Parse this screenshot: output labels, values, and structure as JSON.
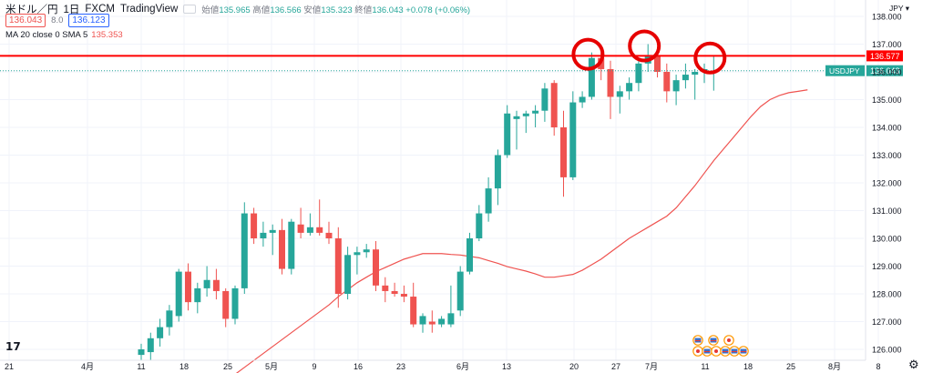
{
  "header": {
    "symbol": "米ドル／円",
    "interval": "1日",
    "source": "FXCM",
    "platform": "TradingView",
    "ohlc": {
      "open_label": "始値",
      "open": "135.965",
      "high_label": "高値",
      "high": "136.566",
      "low_label": "安値",
      "low": "135.323",
      "close_label": "終値",
      "close": "136.043",
      "change": "+0.078 (+0.06%)"
    },
    "sell_price": "136.043",
    "spread": "8.0",
    "buy_price": "136.123",
    "indicator_label": "MA 20 close 0 SMA 5",
    "indicator_value": "135.353"
  },
  "currency_label": "JPY",
  "colors": {
    "up": "#26a69a",
    "down": "#ef5350",
    "ma": "#ef5350",
    "resistance": "#ff0000",
    "circle": "#e60000"
  },
  "chart_data": {
    "type": "candlestick",
    "y_axis": {
      "range": [
        125.5,
        138.3
      ],
      "ticks": [
        "126.000",
        "127.000",
        "128.000",
        "129.000",
        "130.000",
        "131.000",
        "132.000",
        "133.000",
        "134.000",
        "135.000",
        "136.000",
        "137.000",
        "138.000"
      ]
    },
    "x_axis": {
      "ticks": [
        "21",
        "4月",
        "11",
        "18",
        "25",
        "5月",
        "9",
        "16",
        "23",
        "6月",
        "13",
        "20",
        "27",
        "7月",
        "11",
        "18",
        "25",
        "8月",
        "8"
      ]
    },
    "horizontal_line": {
      "value": 136.577,
      "label": "136.577"
    },
    "last_price": {
      "value": 136.043,
      "label": "136.043",
      "symbol": "USDJPY"
    },
    "candles": [
      {
        "o": 125.8,
        "h": 126.2,
        "l": 125.5,
        "c": 126.0
      },
      {
        "o": 125.9,
        "h": 126.6,
        "l": 125.6,
        "c": 126.4
      },
      {
        "o": 126.4,
        "h": 127.1,
        "l": 126.1,
        "c": 126.8
      },
      {
        "o": 126.8,
        "h": 127.6,
        "l": 126.5,
        "c": 127.4
      },
      {
        "o": 127.2,
        "h": 128.9,
        "l": 127.0,
        "c": 128.8
      },
      {
        "o": 128.8,
        "h": 129.1,
        "l": 127.4,
        "c": 127.7
      },
      {
        "o": 127.7,
        "h": 128.4,
        "l": 127.3,
        "c": 128.2
      },
      {
        "o": 128.2,
        "h": 129.0,
        "l": 127.9,
        "c": 128.5
      },
      {
        "o": 128.5,
        "h": 128.9,
        "l": 127.8,
        "c": 128.1
      },
      {
        "o": 128.1,
        "h": 128.2,
        "l": 126.8,
        "c": 127.1
      },
      {
        "o": 127.1,
        "h": 128.3,
        "l": 126.9,
        "c": 128.2
      },
      {
        "o": 128.2,
        "h": 131.3,
        "l": 128.0,
        "c": 130.9
      },
      {
        "o": 130.9,
        "h": 131.1,
        "l": 129.8,
        "c": 130.0
      },
      {
        "o": 130.0,
        "h": 130.6,
        "l": 129.7,
        "c": 130.2
      },
      {
        "o": 130.2,
        "h": 130.5,
        "l": 129.4,
        "c": 130.3
      },
      {
        "o": 130.3,
        "h": 130.7,
        "l": 128.7,
        "c": 128.9
      },
      {
        "o": 128.9,
        "h": 130.7,
        "l": 128.7,
        "c": 130.6
      },
      {
        "o": 130.5,
        "h": 131.1,
        "l": 130.0,
        "c": 130.2
      },
      {
        "o": 130.2,
        "h": 130.9,
        "l": 130.1,
        "c": 130.4
      },
      {
        "o": 130.4,
        "h": 131.4,
        "l": 130.1,
        "c": 130.2
      },
      {
        "o": 130.2,
        "h": 130.6,
        "l": 129.8,
        "c": 130.0
      },
      {
        "o": 130.0,
        "h": 130.4,
        "l": 127.5,
        "c": 128.0
      },
      {
        "o": 128.0,
        "h": 129.7,
        "l": 127.8,
        "c": 129.4
      },
      {
        "o": 129.4,
        "h": 129.7,
        "l": 128.7,
        "c": 129.5
      },
      {
        "o": 129.5,
        "h": 129.8,
        "l": 129.3,
        "c": 129.6
      },
      {
        "o": 129.6,
        "h": 129.9,
        "l": 128.1,
        "c": 128.3
      },
      {
        "o": 128.3,
        "h": 128.6,
        "l": 127.7,
        "c": 128.1
      },
      {
        "o": 128.1,
        "h": 128.4,
        "l": 127.9,
        "c": 128.0
      },
      {
        "o": 128.0,
        "h": 128.3,
        "l": 127.7,
        "c": 127.9
      },
      {
        "o": 127.9,
        "h": 128.4,
        "l": 126.8,
        "c": 126.9
      },
      {
        "o": 126.9,
        "h": 127.3,
        "l": 126.6,
        "c": 127.2
      },
      {
        "o": 127.0,
        "h": 127.4,
        "l": 126.6,
        "c": 126.9
      },
      {
        "o": 126.9,
        "h": 127.2,
        "l": 126.8,
        "c": 127.1
      },
      {
        "o": 126.9,
        "h": 128.3,
        "l": 126.8,
        "c": 127.3
      },
      {
        "o": 127.4,
        "h": 129.0,
        "l": 127.2,
        "c": 128.8
      },
      {
        "o": 128.8,
        "h": 130.2,
        "l": 128.7,
        "c": 130.0
      },
      {
        "o": 130.0,
        "h": 131.2,
        "l": 129.9,
        "c": 130.9
      },
      {
        "o": 130.9,
        "h": 132.2,
        "l": 130.6,
        "c": 131.8
      },
      {
        "o": 131.8,
        "h": 133.2,
        "l": 131.2,
        "c": 133.0
      },
      {
        "o": 133.0,
        "h": 134.8,
        "l": 132.9,
        "c": 134.5
      },
      {
        "o": 134.3,
        "h": 134.6,
        "l": 133.2,
        "c": 134.4
      },
      {
        "o": 134.4,
        "h": 134.6,
        "l": 133.8,
        "c": 134.5
      },
      {
        "o": 134.5,
        "h": 134.8,
        "l": 134.0,
        "c": 134.6
      },
      {
        "o": 134.6,
        "h": 135.6,
        "l": 134.2,
        "c": 135.4
      },
      {
        "o": 135.6,
        "h": 135.7,
        "l": 133.7,
        "c": 134.0
      },
      {
        "o": 134.0,
        "h": 134.6,
        "l": 131.5,
        "c": 132.2
      },
      {
        "o": 132.2,
        "h": 135.3,
        "l": 132.1,
        "c": 134.9
      },
      {
        "o": 134.9,
        "h": 135.3,
        "l": 134.7,
        "c": 135.1
      },
      {
        "o": 135.1,
        "h": 136.7,
        "l": 135.0,
        "c": 136.5
      },
      {
        "o": 136.5,
        "h": 136.7,
        "l": 135.7,
        "c": 136.1
      },
      {
        "o": 136.1,
        "h": 136.4,
        "l": 134.3,
        "c": 135.1
      },
      {
        "o": 135.1,
        "h": 135.5,
        "l": 134.5,
        "c": 135.3
      },
      {
        "o": 135.3,
        "h": 135.8,
        "l": 135.0,
        "c": 135.6
      },
      {
        "o": 135.6,
        "h": 136.5,
        "l": 135.3,
        "c": 136.3
      },
      {
        "o": 136.3,
        "h": 137.0,
        "l": 136.0,
        "c": 136.6
      },
      {
        "o": 136.6,
        "h": 136.9,
        "l": 135.8,
        "c": 136.0
      },
      {
        "o": 136.0,
        "h": 136.3,
        "l": 134.9,
        "c": 135.3
      },
      {
        "o": 135.3,
        "h": 135.9,
        "l": 134.8,
        "c": 135.7
      },
      {
        "o": 135.7,
        "h": 136.3,
        "l": 135.4,
        "c": 135.9
      },
      {
        "o": 135.9,
        "h": 136.1,
        "l": 135.0,
        "c": 136.0
      },
      {
        "o": 136.0,
        "h": 136.3,
        "l": 135.6,
        "c": 136.1
      },
      {
        "o": 135.965,
        "h": 136.566,
        "l": 135.323,
        "c": 136.043
      }
    ],
    "ma20": [
      125.1,
      125.35,
      125.6,
      125.85,
      126.1,
      126.35,
      126.6,
      126.85,
      127.1,
      127.35,
      127.6,
      127.9,
      128.15,
      128.4,
      128.6,
      128.8,
      128.95,
      129.1,
      129.25,
      129.35,
      129.45,
      129.45,
      129.45,
      129.42,
      129.4,
      129.35,
      129.3,
      129.2,
      129.1,
      128.98,
      128.9,
      128.82,
      128.72,
      128.6,
      128.6,
      128.65,
      128.7,
      128.85,
      129.05,
      129.25,
      129.5,
      129.75,
      130.0,
      130.2,
      130.4,
      130.6,
      130.8,
      131.1,
      131.5,
      131.9,
      132.35,
      132.8,
      133.2,
      133.6,
      134.0,
      134.4,
      134.75,
      135.0,
      135.15,
      135.25,
      135.3,
      135.353
    ],
    "circled_candles": [
      48,
      54,
      61
    ],
    "event_markers": [
      {
        "label": "US",
        "row": 1,
        "slot": 0
      },
      {
        "label": "US",
        "row": 1,
        "slot": 1
      },
      {
        "label": "JP",
        "row": 1,
        "slot": 2
      },
      {
        "label": "JP",
        "row": 2,
        "slot": 0
      },
      {
        "label": "US",
        "row": 2,
        "slot": 1
      },
      {
        "label": "JP",
        "row": 2,
        "slot": 2
      },
      {
        "label": "US",
        "row": 2,
        "slot": 3
      },
      {
        "label": "US",
        "row": 2,
        "slot": 4
      },
      {
        "label": "US",
        "row": 2,
        "slot": 5
      }
    ]
  }
}
